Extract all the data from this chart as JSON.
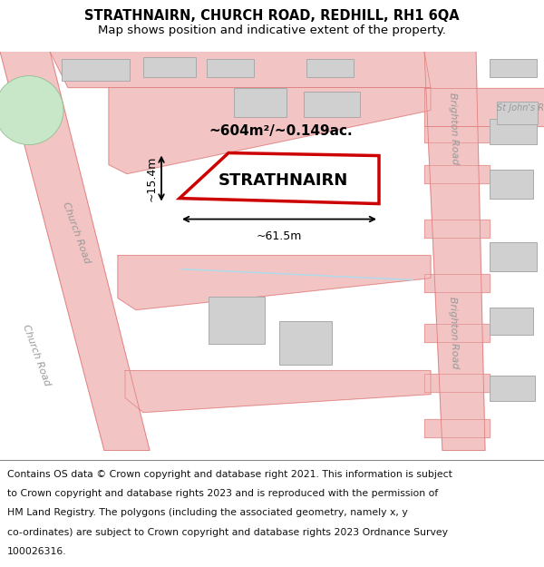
{
  "title": "STRATHNAIRN, CHURCH ROAD, REDHILL, RH1 6QA",
  "subtitle": "Map shows position and indicative extent of the property.",
  "footer_lines": [
    "Contains OS data © Crown copyright and database right 2021. This information is subject",
    "to Crown copyright and database rights 2023 and is reproduced with the permission of",
    "HM Land Registry. The polygons (including the associated geometry, namely x, y",
    "co-ordinates) are subject to Crown copyright and database rights 2023 Ordnance Survey",
    "100026316."
  ],
  "map_bg": "#f0f0f0",
  "road_color": "#f2c4c4",
  "road_outline": "#e08080",
  "building_fill": "#d0d0d0",
  "building_outline": "#aaaaaa",
  "property_outline": "#cc0000",
  "green_fill": "#c8e6c8",
  "green_outline": "#90c090",
  "road_text_color": "#999999",
  "area_text": "~604m²/~0.149ac.",
  "name_text": "STRATHNAIRN",
  "width_text": "~61.5m",
  "height_text": "~15.4m",
  "footer_bg": "#ffffff",
  "title_fontsize": 10.5,
  "subtitle_fontsize": 9.5,
  "footer_fontsize": 7.8
}
